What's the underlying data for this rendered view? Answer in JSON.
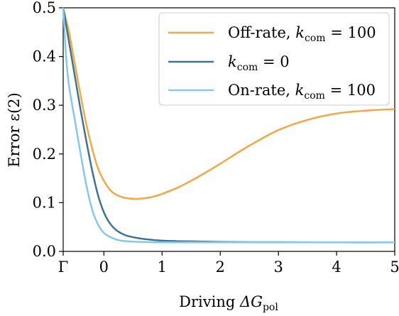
{
  "chart_data": {
    "type": "line",
    "xlabel_prefix": "Driving ",
    "xlabel_symbol": "ΔG",
    "xlabel_sub": "pol",
    "ylabel": "Error ε(2)",
    "xlim": [
      -0.7,
      5
    ],
    "ylim": [
      0,
      0.5
    ],
    "x_ticks": [
      {
        "value": -0.7,
        "label": "Γ"
      },
      {
        "value": 0,
        "label": "0"
      },
      {
        "value": 1,
        "label": "1"
      },
      {
        "value": 2,
        "label": "2"
      },
      {
        "value": 3,
        "label": "3"
      },
      {
        "value": 4,
        "label": "4"
      },
      {
        "value": 5,
        "label": "5"
      }
    ],
    "y_ticks": [
      {
        "value": 0.0,
        "label": "0.0"
      },
      {
        "value": 0.1,
        "label": "0.1"
      },
      {
        "value": 0.2,
        "label": "0.2"
      },
      {
        "value": 0.3,
        "label": "0.3"
      },
      {
        "value": 0.4,
        "label": "0.4"
      },
      {
        "value": 0.5,
        "label": "0.5"
      }
    ],
    "legend_position": "top-right",
    "grid": false,
    "series": [
      {
        "name": "Off-rate, k_com = 100",
        "label_text": "Off-rate, ",
        "label_math": "k",
        "label_sub": "com",
        "label_tail": " = 100",
        "color": "#f0a848",
        "x": [
          -0.7,
          -0.6,
          -0.5,
          -0.4,
          -0.3,
          -0.2,
          -0.1,
          0.0,
          0.1,
          0.2,
          0.3,
          0.4,
          0.5,
          0.6,
          0.8,
          1.0,
          1.25,
          1.5,
          1.75,
          2.0,
          2.5,
          3.0,
          3.5,
          4.0,
          4.5,
          5.0
        ],
        "y": [
          0.5,
          0.45,
          0.385,
          0.32,
          0.26,
          0.21,
          0.17,
          0.145,
          0.127,
          0.117,
          0.112,
          0.109,
          0.108,
          0.108,
          0.111,
          0.118,
          0.13,
          0.145,
          0.162,
          0.18,
          0.217,
          0.249,
          0.27,
          0.283,
          0.289,
          0.292
        ]
      },
      {
        "name": "k_com = 0",
        "label_text": "",
        "label_math": "k",
        "label_sub": "com",
        "label_tail": " = 0",
        "color": "#3f7391",
        "x": [
          -0.7,
          -0.6,
          -0.5,
          -0.4,
          -0.3,
          -0.2,
          -0.1,
          0.0,
          0.1,
          0.2,
          0.3,
          0.4,
          0.6,
          0.8,
          1.0,
          1.25,
          1.5,
          2.0,
          2.5,
          3.0,
          4.0,
          5.0
        ],
        "y": [
          0.5,
          0.43,
          0.36,
          0.29,
          0.225,
          0.165,
          0.115,
          0.08,
          0.058,
          0.045,
          0.037,
          0.032,
          0.027,
          0.024,
          0.022,
          0.021,
          0.0205,
          0.0195,
          0.019,
          0.019,
          0.0185,
          0.0185
        ]
      },
      {
        "name": "On-rate, k_com = 100",
        "label_text": "On-rate, ",
        "label_math": "k",
        "label_sub": "com",
        "label_tail": " = 100",
        "color": "#87c8ea",
        "x": [
          -0.7,
          -0.65,
          -0.6,
          -0.5,
          -0.4,
          -0.3,
          -0.2,
          -0.1,
          0.0,
          0.1,
          0.2,
          0.3,
          0.5,
          0.75,
          1.0,
          1.5,
          2.0,
          3.0,
          4.0,
          5.0
        ],
        "y": [
          0.5,
          0.4,
          0.34,
          0.27,
          0.2,
          0.135,
          0.085,
          0.055,
          0.038,
          0.03,
          0.025,
          0.022,
          0.02,
          0.019,
          0.0185,
          0.0185,
          0.0185,
          0.0185,
          0.0185,
          0.0185
        ]
      }
    ]
  }
}
